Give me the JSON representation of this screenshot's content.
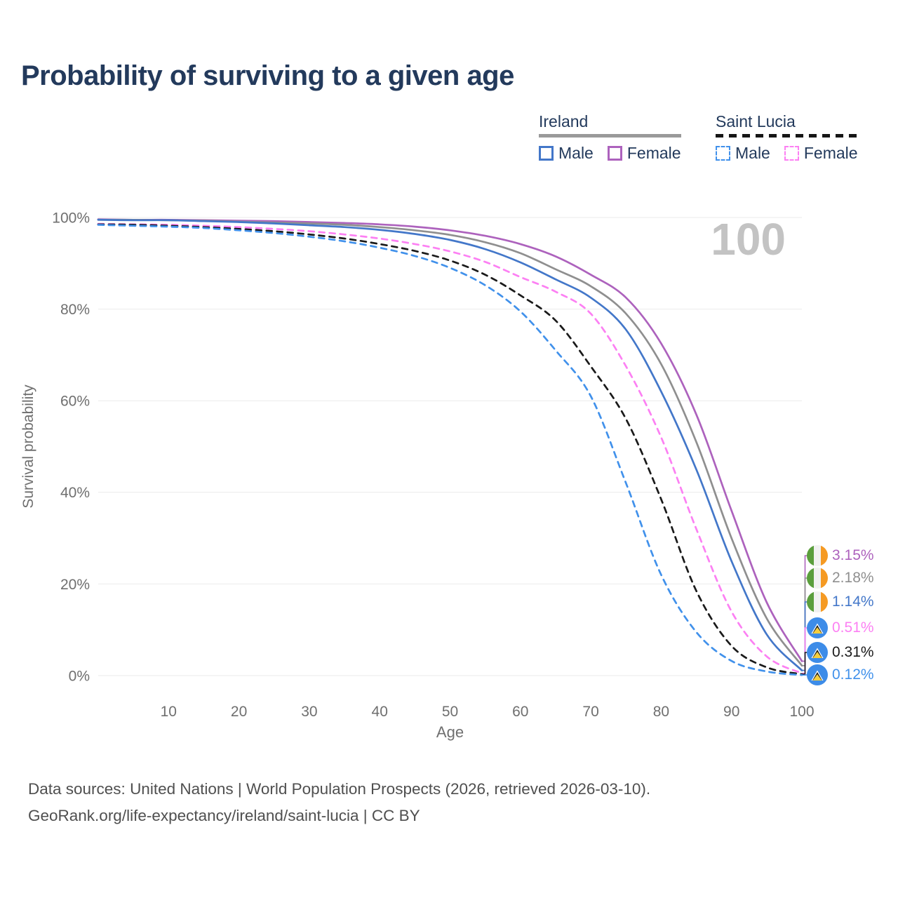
{
  "page": {
    "title": "Probability of surviving to a given age"
  },
  "legend": {
    "groups": [
      {
        "label": "Ireland",
        "line_style": "solid",
        "underline_color": "#9a9a9a",
        "items": [
          {
            "label": "Male",
            "color": "#4377c9",
            "dashed": false
          },
          {
            "label": "Female",
            "color": "#ad62bd",
            "dashed": false
          }
        ]
      },
      {
        "label": "Saint Lucia",
        "line_style": "dashed",
        "underline_color": "#161616",
        "items": [
          {
            "label": "Male",
            "color": "#4191eb",
            "dashed": true
          },
          {
            "label": "Female",
            "color": "#fc80f3",
            "dashed": true
          }
        ]
      }
    ]
  },
  "chart_data": {
    "type": "line",
    "title": "Probability of surviving to a given age",
    "xlabel": "Age",
    "ylabel": "Survival probability",
    "xlim": [
      0,
      100
    ],
    "ylim": [
      0,
      100
    ],
    "grid": "horizontal",
    "age_counter": "100",
    "x_ticks": [
      {
        "value": 10,
        "label": "10"
      },
      {
        "value": 20,
        "label": "20"
      },
      {
        "value": 30,
        "label": "30"
      },
      {
        "value": 40,
        "label": "40"
      },
      {
        "value": 50,
        "label": "50"
      },
      {
        "value": 60,
        "label": "60"
      },
      {
        "value": 70,
        "label": "70"
      },
      {
        "value": 80,
        "label": "80"
      },
      {
        "value": 90,
        "label": "90"
      },
      {
        "value": 100,
        "label": "100"
      }
    ],
    "y_ticks": [
      {
        "value": 0,
        "label": "0%"
      },
      {
        "value": 20,
        "label": "20%"
      },
      {
        "value": 40,
        "label": "40%"
      },
      {
        "value": 60,
        "label": "60%"
      },
      {
        "value": 80,
        "label": "80%"
      },
      {
        "value": 100,
        "label": "100%"
      }
    ],
    "x": [
      0,
      5,
      10,
      15,
      20,
      25,
      30,
      35,
      40,
      45,
      50,
      55,
      60,
      65,
      70,
      75,
      80,
      85,
      90,
      95,
      100
    ],
    "series": [
      {
        "name": "Ireland Female",
        "country": "Ireland",
        "sex": "Female",
        "line": "solid",
        "color": "#ad62bd",
        "end_label": "3.15%",
        "values": [
          99.6,
          99.5,
          99.5,
          99.4,
          99.3,
          99.2,
          99.0,
          98.8,
          98.5,
          98.0,
          97.2,
          96.0,
          94.2,
          91.5,
          87.5,
          82.5,
          72.5,
          57.0,
          36.0,
          16.0,
          3.15
        ]
      },
      {
        "name": "Ireland Both sexes",
        "country": "Ireland",
        "sex": "Both",
        "line": "solid",
        "color": "#8f8f8f",
        "end_label": "2.18%",
        "values": [
          99.5,
          99.5,
          99.4,
          99.3,
          99.1,
          98.9,
          98.7,
          98.4,
          97.9,
          97.2,
          96.2,
          94.6,
          92.2,
          88.7,
          85.0,
          79.0,
          68.0,
          51.0,
          30.0,
          12.5,
          2.18
        ]
      },
      {
        "name": "Ireland Male",
        "country": "Ireland",
        "sex": "Male",
        "line": "solid",
        "color": "#4377c9",
        "end_label": "1.14%",
        "values": [
          99.5,
          99.4,
          99.4,
          99.2,
          99.0,
          98.7,
          98.3,
          97.9,
          97.3,
          96.4,
          95.1,
          93.1,
          90.2,
          86.5,
          82.5,
          75.5,
          62.0,
          45.0,
          25.0,
          9.0,
          1.14
        ]
      },
      {
        "name": "Saint Lucia Female",
        "country": "Saint Lucia",
        "sex": "Female",
        "line": "dashed",
        "color": "#fc80f3",
        "end_label": "0.51%",
        "values": [
          98.6,
          98.5,
          98.4,
          98.2,
          97.9,
          97.5,
          97.0,
          96.3,
          95.4,
          94.2,
          92.6,
          90.3,
          87.0,
          83.8,
          79.0,
          67.5,
          52.0,
          32.0,
          14.0,
          4.2,
          0.51
        ]
      },
      {
        "name": "Saint Lucia Both sexes",
        "country": "Saint Lucia",
        "sex": "Both",
        "line": "dashed",
        "color": "#1a1a1a",
        "end_label": "0.31%",
        "values": [
          98.5,
          98.4,
          98.2,
          97.9,
          97.5,
          97.0,
          96.3,
          95.4,
          94.2,
          92.7,
          90.6,
          87.5,
          83.0,
          77.5,
          67.5,
          56.0,
          38.5,
          18.5,
          6.5,
          1.8,
          0.31
        ]
      },
      {
        "name": "Saint Lucia Male",
        "country": "Saint Lucia",
        "sex": "Male",
        "line": "dashed",
        "color": "#4191eb",
        "end_label": "0.12%",
        "values": [
          98.4,
          98.2,
          98.0,
          97.7,
          97.2,
          96.6,
          95.8,
          94.8,
          93.4,
          91.6,
          89.0,
          85.2,
          79.5,
          71.0,
          61.0,
          42.0,
          22.0,
          9.5,
          3.2,
          0.9,
          0.12
        ]
      }
    ]
  },
  "footer": {
    "line1": "Data sources: United Nations | World Population Prospects (2026, retrieved 2026-03-10).",
    "line2": "GeoRank.org/life-expectancy/ireland/saint-lucia | CC BY"
  }
}
